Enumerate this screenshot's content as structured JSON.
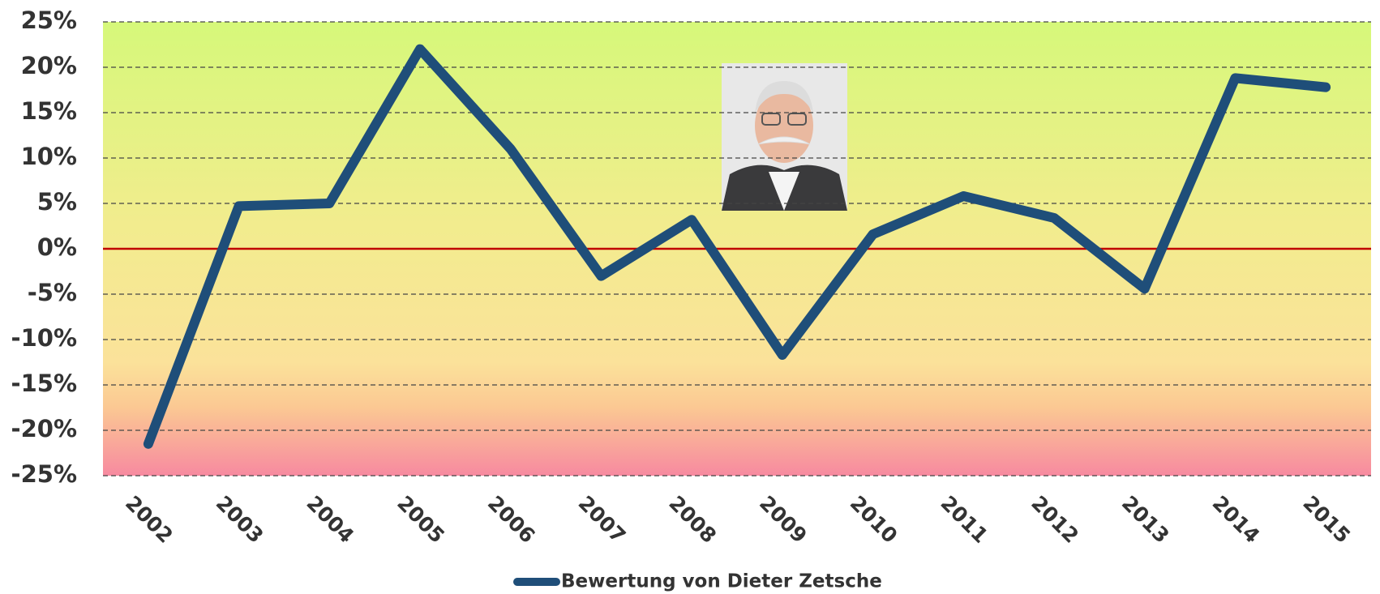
{
  "chart_data": {
    "type": "line",
    "categories": [
      "2002",
      "2003",
      "2004",
      "2005",
      "2006",
      "2007",
      "2008",
      "2009",
      "2010",
      "2011",
      "2012",
      "2013",
      "2014",
      "2015"
    ],
    "series": [
      {
        "name": "Bewertung von Dieter Zetsche",
        "color": "#1f4e79",
        "values": [
          -21.5,
          4.7,
          5.0,
          22.0,
          11.0,
          -3.0,
          3.2,
          -11.7,
          1.6,
          5.8,
          3.4,
          -4.4,
          18.8,
          17.8
        ]
      }
    ],
    "ylim": [
      -25,
      25
    ],
    "yticks": [
      {
        "value": -25,
        "label": "-25%"
      },
      {
        "value": -20,
        "label": "-20%"
      },
      {
        "value": -15,
        "label": "-15%"
      },
      {
        "value": -10,
        "label": "-10%"
      },
      {
        "value": -5,
        "label": "-5%"
      },
      {
        "value": 0,
        "label": "0%"
      },
      {
        "value": 5,
        "label": "5%"
      },
      {
        "value": 10,
        "label": "10%"
      },
      {
        "value": 15,
        "label": "15%"
      },
      {
        "value": 20,
        "label": "20%"
      },
      {
        "value": 25,
        "label": "25%"
      }
    ],
    "grid": true,
    "zero_line_color": "#c00000",
    "legend": "bottom"
  }
}
